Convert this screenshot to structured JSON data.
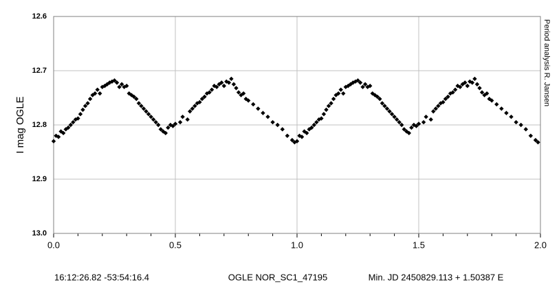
{
  "chart_data": {
    "type": "scatter",
    "y_label": "I mag OGLE",
    "side_note": "Period analysis  R. Jansen",
    "footer": [
      "16:12:26.82 -53:54:16.4",
      "OGLE NOR_SC1_47195",
      "Min. JD 2450829.113 + 1.50387 E"
    ],
    "color": "#000000",
    "xlim": [
      0,
      2
    ],
    "ylim": [
      12.6,
      13.0
    ],
    "y_inverted": true,
    "grid": true,
    "xticks": [
      {
        "value": 0,
        "label": "0.0"
      },
      0.5,
      {
        "value": 1,
        "label": "1.0"
      },
      1.5,
      {
        "value": 2,
        "label": "2.0"
      }
    ],
    "xminorticks": [
      0.1,
      0.2,
      0.3,
      0.4,
      0.6,
      0.7,
      0.8,
      0.9,
      1.1,
      1.2,
      1.3,
      1.4,
      1.6,
      1.7,
      1.8,
      1.9
    ],
    "yticks": [
      12.6,
      12.7,
      12.8,
      12.9,
      {
        "value": 13,
        "label": "13.0"
      }
    ],
    "x": [
      0.0,
      0.01,
      0.02,
      0.03,
      0.04,
      0.05,
      0.06,
      0.07,
      0.08,
      0.09,
      0.1,
      0.11,
      0.12,
      0.13,
      0.14,
      0.15,
      0.16,
      0.17,
      0.18,
      0.19,
      0.2,
      0.21,
      0.22,
      0.23,
      0.24,
      0.25,
      0.26,
      0.27,
      0.28,
      0.29,
      0.3,
      0.31,
      0.32,
      0.33,
      0.34,
      0.35,
      0.36,
      0.37,
      0.38,
      0.39,
      0.4,
      0.41,
      0.42,
      0.43,
      0.44,
      0.45,
      0.46,
      0.47,
      0.48,
      0.49,
      0.5,
      0.52,
      0.53,
      0.55,
      0.56,
      0.57,
      0.58,
      0.59,
      0.6,
      0.61,
      0.62,
      0.63,
      0.64,
      0.65,
      0.66,
      0.67,
      0.68,
      0.69,
      0.7,
      0.71,
      0.72,
      0.73,
      0.74,
      0.75,
      0.76,
      0.77,
      0.78,
      0.79,
      0.8,
      0.82,
      0.84,
      0.86,
      0.88,
      0.9,
      0.92,
      0.94,
      0.96,
      0.98,
      0.99,
      1.0,
      1.01,
      1.02,
      1.03,
      1.04,
      1.05,
      1.06,
      1.07,
      1.08,
      1.09,
      1.1,
      1.11,
      1.12,
      1.13,
      1.14,
      1.15,
      1.16,
      1.17,
      1.18,
      1.19,
      1.2,
      1.21,
      1.22,
      1.23,
      1.24,
      1.25,
      1.26,
      1.27,
      1.28,
      1.29,
      1.3,
      1.31,
      1.32,
      1.33,
      1.34,
      1.35,
      1.36,
      1.37,
      1.38,
      1.39,
      1.4,
      1.41,
      1.42,
      1.43,
      1.44,
      1.45,
      1.46,
      1.47,
      1.48,
      1.49,
      1.5,
      1.52,
      1.53,
      1.55,
      1.56,
      1.57,
      1.58,
      1.59,
      1.6,
      1.61,
      1.62,
      1.63,
      1.64,
      1.65,
      1.66,
      1.67,
      1.68,
      1.69,
      1.7,
      1.71,
      1.72,
      1.73,
      1.74,
      1.75,
      1.76,
      1.77,
      1.78,
      1.79,
      1.8,
      1.82,
      1.84,
      1.86,
      1.88,
      1.9,
      1.92,
      1.94,
      1.96,
      1.98,
      1.99
    ],
    "values": [
      12.83,
      12.82,
      12.822,
      12.812,
      12.815,
      12.808,
      12.805,
      12.8,
      12.795,
      12.79,
      12.788,
      12.78,
      12.772,
      12.765,
      12.76,
      12.752,
      12.745,
      12.742,
      12.735,
      12.742,
      12.73,
      12.728,
      12.725,
      12.722,
      12.72,
      12.718,
      12.722,
      12.73,
      12.725,
      12.73,
      12.728,
      12.742,
      12.745,
      12.748,
      12.752,
      12.76,
      12.765,
      12.77,
      12.775,
      12.78,
      12.785,
      12.79,
      12.795,
      12.8,
      12.808,
      12.812,
      12.815,
      12.805,
      12.8,
      12.802,
      12.798,
      12.795,
      12.785,
      12.79,
      12.775,
      12.77,
      12.765,
      12.76,
      12.758,
      12.752,
      12.748,
      12.742,
      12.74,
      12.735,
      12.728,
      12.73,
      12.725,
      12.722,
      12.728,
      12.72,
      12.722,
      12.715,
      12.725,
      12.732,
      12.74,
      12.745,
      12.742,
      12.752,
      12.755,
      12.762,
      12.77,
      12.778,
      12.785,
      12.795,
      12.8,
      12.808,
      12.82,
      12.828,
      12.832,
      12.83,
      12.82,
      12.822,
      12.812,
      12.815,
      12.808,
      12.805,
      12.8,
      12.795,
      12.79,
      12.788,
      12.78,
      12.772,
      12.765,
      12.76,
      12.752,
      12.745,
      12.742,
      12.735,
      12.742,
      12.73,
      12.728,
      12.725,
      12.722,
      12.72,
      12.718,
      12.722,
      12.73,
      12.725,
      12.73,
      12.728,
      12.742,
      12.745,
      12.748,
      12.752,
      12.76,
      12.765,
      12.77,
      12.775,
      12.78,
      12.785,
      12.79,
      12.795,
      12.8,
      12.808,
      12.812,
      12.815,
      12.805,
      12.8,
      12.802,
      12.798,
      12.795,
      12.785,
      12.79,
      12.775,
      12.77,
      12.765,
      12.76,
      12.758,
      12.752,
      12.748,
      12.742,
      12.74,
      12.735,
      12.728,
      12.73,
      12.725,
      12.722,
      12.728,
      12.72,
      12.722,
      12.715,
      12.725,
      12.732,
      12.74,
      12.745,
      12.742,
      12.752,
      12.755,
      12.762,
      12.77,
      12.778,
      12.785,
      12.795,
      12.8,
      12.808,
      12.82,
      12.828,
      12.832
    ]
  }
}
